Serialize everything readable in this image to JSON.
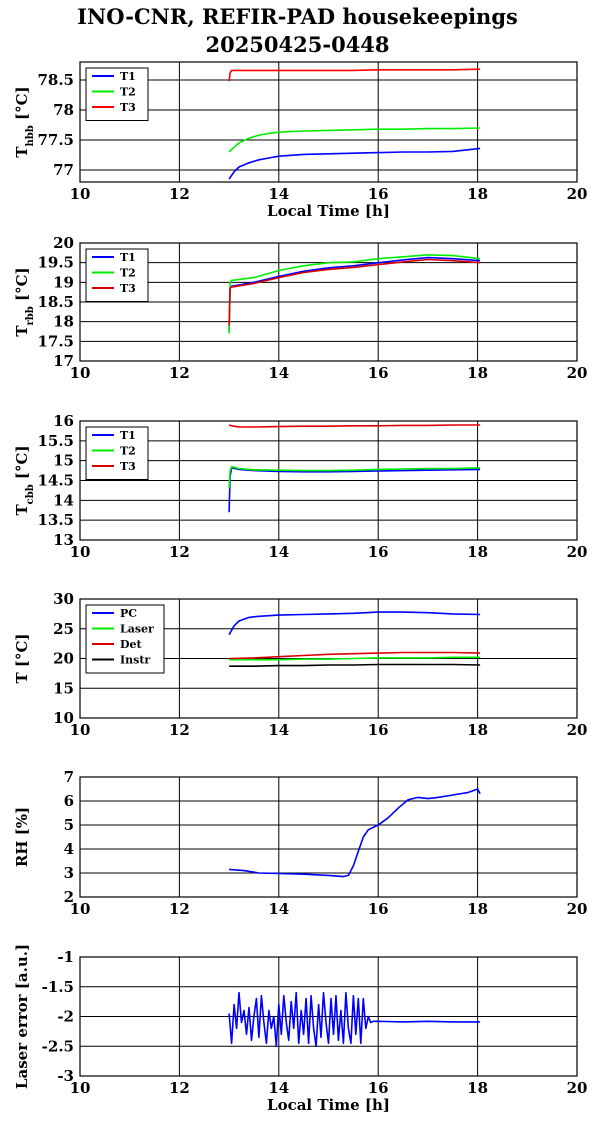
{
  "title_line1": "INO-CNR, REFIR-PAD housekeepings",
  "title_line2": "20250425-0448",
  "chart_data": [
    {
      "type": "line",
      "ylabel": "T",
      "ylabel_sub": "hbb",
      "ylabel_unit": " [°C]",
      "xlabel": "Local Time [h]",
      "xlim": [
        10,
        20
      ],
      "xticks": [
        10,
        12,
        14,
        16,
        18,
        20
      ],
      "ylim": [
        76.8,
        78.8
      ],
      "yticks": [
        77,
        77.5,
        78,
        78.5
      ],
      "ytick_labels": [
        "77",
        "77.5",
        "78",
        "78.5"
      ],
      "grid": true,
      "legend_placement": "top-left",
      "series": [
        {
          "name": "T1",
          "color": "#0000ff",
          "x": [
            13.0,
            13.1,
            13.2,
            13.4,
            13.6,
            13.8,
            14.0,
            14.5,
            15.0,
            15.5,
            16.0,
            16.5,
            17.0,
            17.5,
            18.05
          ],
          "y": [
            76.85,
            76.97,
            77.05,
            77.12,
            77.17,
            77.2,
            77.23,
            77.26,
            77.27,
            77.28,
            77.29,
            77.3,
            77.3,
            77.31,
            77.36
          ]
        },
        {
          "name": "T2",
          "color": "#00ee00",
          "x": [
            13.0,
            13.1,
            13.2,
            13.4,
            13.6,
            13.8,
            14.0,
            14.5,
            15.0,
            15.5,
            16.0,
            16.5,
            17.0,
            17.5,
            18.05
          ],
          "y": [
            77.3,
            77.38,
            77.45,
            77.53,
            77.58,
            77.61,
            77.63,
            77.65,
            77.66,
            77.67,
            77.68,
            77.68,
            77.69,
            77.69,
            77.7
          ]
        },
        {
          "name": "T3",
          "color": "#ff0000",
          "x": [
            13.0,
            13.02,
            13.05,
            13.2,
            13.5,
            14.0,
            14.5,
            15.0,
            15.5,
            16.0,
            16.5,
            17.0,
            17.5,
            18.05
          ],
          "y": [
            78.48,
            78.62,
            78.66,
            78.66,
            78.66,
            78.66,
            78.66,
            78.66,
            78.66,
            78.67,
            78.67,
            78.67,
            78.67,
            78.68
          ]
        }
      ]
    },
    {
      "type": "line",
      "ylabel": "T",
      "ylabel_sub": "rbb",
      "ylabel_unit": " [°C]",
      "xlabel": "",
      "xlim": [
        10,
        20
      ],
      "xticks": [
        10,
        12,
        14,
        16,
        18,
        20
      ],
      "ylim": [
        17,
        20
      ],
      "yticks": [
        17,
        17.5,
        18,
        18.5,
        19,
        19.5,
        20
      ],
      "ytick_labels": [
        "17",
        "17.5",
        "18",
        "18.5",
        "19",
        "19.5",
        "20"
      ],
      "grid": true,
      "legend_placement": "top-left",
      "series": [
        {
          "name": "T1",
          "color": "#0000ff",
          "x": [
            13.0,
            13.02,
            13.05,
            13.5,
            14.0,
            14.5,
            15.0,
            15.5,
            16.0,
            16.5,
            17.0,
            17.5,
            18.05
          ],
          "y": [
            17.8,
            18.85,
            18.9,
            19.0,
            19.15,
            19.28,
            19.37,
            19.42,
            19.5,
            19.57,
            19.63,
            19.6,
            19.55
          ]
        },
        {
          "name": "T2",
          "color": "#00ee00",
          "x": [
            13.0,
            13.02,
            13.05,
            13.5,
            14.0,
            14.5,
            15.0,
            15.5,
            16.0,
            16.5,
            17.0,
            17.5,
            18.05
          ],
          "y": [
            17.7,
            19.0,
            19.05,
            19.12,
            19.3,
            19.42,
            19.5,
            19.52,
            19.6,
            19.65,
            19.7,
            19.68,
            19.6
          ]
        },
        {
          "name": "T3",
          "color": "#dd0000",
          "x": [
            13.0,
            13.02,
            13.05,
            13.5,
            14.0,
            14.5,
            15.0,
            15.5,
            16.0,
            16.5,
            17.0,
            17.5,
            18.05
          ],
          "y": [
            17.9,
            18.85,
            18.88,
            18.97,
            19.12,
            19.25,
            19.33,
            19.38,
            19.45,
            19.52,
            19.58,
            19.55,
            19.5
          ]
        }
      ]
    },
    {
      "type": "line",
      "ylabel": "T",
      "ylabel_sub": "cbb",
      "ylabel_unit": " [°C]",
      "xlabel": "",
      "xlim": [
        10,
        20
      ],
      "xticks": [
        10,
        12,
        14,
        16,
        18,
        20
      ],
      "ylim": [
        13,
        16
      ],
      "yticks": [
        13,
        13.5,
        14,
        14.5,
        15,
        15.5,
        16
      ],
      "ytick_labels": [
        "13",
        "13.5",
        "14",
        "14.5",
        "15",
        "15.5",
        "16"
      ],
      "grid": true,
      "legend_placement": "top-left",
      "series": [
        {
          "name": "T1",
          "color": "#0000ff",
          "x": [
            13.0,
            13.02,
            13.05,
            13.2,
            13.5,
            14.0,
            14.5,
            15.0,
            15.5,
            16.0,
            16.5,
            17.0,
            17.5,
            18.05
          ],
          "y": [
            13.7,
            14.6,
            14.82,
            14.78,
            14.75,
            14.73,
            14.72,
            14.72,
            14.73,
            14.74,
            14.75,
            14.76,
            14.77,
            14.78
          ]
        },
        {
          "name": "T2",
          "color": "#00ee00",
          "x": [
            13.0,
            13.02,
            13.05,
            13.2,
            13.5,
            14.0,
            14.5,
            15.0,
            15.5,
            16.0,
            16.5,
            17.0,
            17.5,
            18.05
          ],
          "y": [
            14.3,
            14.75,
            14.85,
            14.8,
            14.77,
            14.76,
            14.75,
            14.75,
            14.76,
            14.78,
            14.79,
            14.8,
            14.8,
            14.82
          ]
        },
        {
          "name": "T3",
          "color": "#dd0000",
          "x": [
            13.0,
            13.05,
            13.2,
            13.5,
            14.0,
            14.5,
            15.0,
            15.5,
            16.0,
            16.5,
            17.0,
            17.5,
            18.05
          ],
          "y": [
            15.9,
            15.88,
            15.85,
            15.85,
            15.86,
            15.87,
            15.87,
            15.88,
            15.88,
            15.89,
            15.89,
            15.9,
            15.9
          ]
        }
      ]
    },
    {
      "type": "line",
      "ylabel": "T [°C]",
      "ylabel_sub": "",
      "ylabel_unit": "",
      "xlabel": "",
      "xlim": [
        10,
        20
      ],
      "xticks": [
        10,
        12,
        14,
        16,
        18,
        20
      ],
      "ylim": [
        10,
        30
      ],
      "yticks": [
        10,
        15,
        20,
        25,
        30
      ],
      "ytick_labels": [
        "10",
        "15",
        "20",
        "25",
        "30"
      ],
      "grid": true,
      "legend_placement": "top-left",
      "series": [
        {
          "name": "PC",
          "color": "#0000ff",
          "x": [
            13.0,
            13.1,
            13.2,
            13.4,
            13.6,
            14.0,
            14.5,
            15.0,
            15.5,
            16.0,
            16.5,
            17.0,
            17.5,
            18.05
          ],
          "y": [
            24.0,
            25.5,
            26.3,
            26.9,
            27.1,
            27.3,
            27.4,
            27.5,
            27.6,
            27.8,
            27.8,
            27.7,
            27.5,
            27.4
          ]
        },
        {
          "name": "Laser",
          "color": "#00ee00",
          "x": [
            13.0,
            13.5,
            14.0,
            14.5,
            15.0,
            15.5,
            16.0,
            16.5,
            17.0,
            17.5,
            18.05
          ],
          "y": [
            19.8,
            19.8,
            19.8,
            19.9,
            19.9,
            20.0,
            20.1,
            20.1,
            20.1,
            20.2,
            20.2
          ]
        },
        {
          "name": "Det",
          "color": "#dd0000",
          "x": [
            13.0,
            13.5,
            14.0,
            14.5,
            15.0,
            15.5,
            16.0,
            16.5,
            17.0,
            17.5,
            18.05
          ],
          "y": [
            20.0,
            20.1,
            20.3,
            20.5,
            20.7,
            20.8,
            20.9,
            21.0,
            21.0,
            21.0,
            20.9
          ]
        },
        {
          "name": "Instr",
          "color": "#000000",
          "x": [
            13.0,
            13.5,
            14.0,
            14.5,
            15.0,
            15.5,
            16.0,
            16.5,
            17.0,
            17.5,
            18.05
          ],
          "y": [
            18.7,
            18.7,
            18.8,
            18.8,
            18.9,
            18.9,
            19.0,
            19.0,
            19.0,
            19.0,
            18.9
          ]
        }
      ]
    },
    {
      "type": "line",
      "ylabel": "RH [%]",
      "ylabel_sub": "",
      "ylabel_unit": "",
      "xlabel": "",
      "xlim": [
        10,
        20
      ],
      "xticks": [
        10,
        12,
        14,
        16,
        18,
        20
      ],
      "ylim": [
        2,
        7
      ],
      "yticks": [
        2,
        3,
        4,
        5,
        6,
        7
      ],
      "ytick_labels": [
        "2",
        "3",
        "4",
        "5",
        "6",
        "7"
      ],
      "grid": true,
      "legend_placement": "none",
      "series": [
        {
          "name": "",
          "color": "#0000ff",
          "x": [
            13.0,
            13.3,
            13.6,
            14.0,
            14.5,
            15.0,
            15.3,
            15.4,
            15.5,
            15.6,
            15.7,
            15.8,
            15.9,
            16.0,
            16.2,
            16.4,
            16.6,
            16.8,
            17.0,
            17.2,
            17.5,
            17.8,
            18.0,
            18.05
          ],
          "y": [
            3.15,
            3.1,
            3.0,
            2.98,
            2.95,
            2.9,
            2.85,
            2.9,
            3.3,
            3.9,
            4.5,
            4.8,
            4.9,
            5.0,
            5.3,
            5.7,
            6.05,
            6.15,
            6.1,
            6.15,
            6.25,
            6.35,
            6.5,
            6.3
          ]
        }
      ]
    },
    {
      "type": "line",
      "ylabel": "Laser error [a.u.]",
      "ylabel_sub": "",
      "ylabel_unit": "",
      "xlabel": "Local Time [h]",
      "xlim": [
        10,
        20
      ],
      "xticks": [
        10,
        12,
        14,
        16,
        18,
        20
      ],
      "ylim": [
        -3,
        -1
      ],
      "yticks": [
        -3,
        -2.5,
        -2,
        -1.5,
        -1
      ],
      "ytick_labels": [
        "-3",
        "-2.5",
        "-2",
        "-1.5",
        "-1"
      ],
      "grid": true,
      "legend_placement": "none",
      "series": [
        {
          "name": "",
          "color": "#0000ff",
          "x": [
            13.0,
            13.05,
            13.1,
            13.15,
            13.2,
            13.25,
            13.3,
            13.35,
            13.4,
            13.45,
            13.5,
            13.55,
            13.6,
            13.65,
            13.7,
            13.75,
            13.8,
            13.85,
            13.9,
            13.95,
            14.0,
            14.05,
            14.1,
            14.15,
            14.2,
            14.25,
            14.3,
            14.35,
            14.4,
            14.45,
            14.5,
            14.55,
            14.6,
            14.65,
            14.7,
            14.75,
            14.8,
            14.85,
            14.9,
            14.95,
            15.0,
            15.05,
            15.1,
            15.15,
            15.2,
            15.25,
            15.3,
            15.35,
            15.4,
            15.45,
            15.5,
            15.55,
            15.6,
            15.65,
            15.7,
            15.75,
            15.8,
            15.85,
            15.9,
            16.0,
            16.5,
            17.0,
            17.5,
            18.05
          ],
          "y": [
            -1.95,
            -2.45,
            -1.8,
            -2.2,
            -1.6,
            -2.1,
            -1.9,
            -2.3,
            -1.85,
            -2.4,
            -2.0,
            -1.7,
            -2.35,
            -1.65,
            -2.1,
            -2.45,
            -1.9,
            -2.2,
            -2.0,
            -2.5,
            -1.8,
            -2.3,
            -1.65,
            -2.1,
            -2.4,
            -1.75,
            -2.2,
            -1.6,
            -2.45,
            -1.9,
            -2.3,
            -1.7,
            -2.45,
            -1.65,
            -2.2,
            -2.5,
            -1.8,
            -2.35,
            -1.6,
            -2.1,
            -2.45,
            -1.7,
            -2.3,
            -1.65,
            -2.4,
            -1.9,
            -2.45,
            -1.6,
            -2.2,
            -2.45,
            -1.65,
            -2.3,
            -1.7,
            -2.45,
            -1.7,
            -2.2,
            -2.0,
            -2.1,
            -2.08,
            -2.08,
            -2.09,
            -2.08,
            -2.09,
            -2.09
          ]
        }
      ]
    }
  ]
}
